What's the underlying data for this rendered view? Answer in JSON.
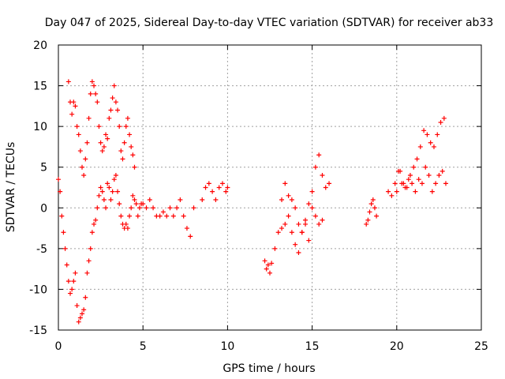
{
  "chart_data": {
    "type": "scatter",
    "title": "Day 047 of 2025, Sidereal Day-to-day VTEC variation (SDTVAR) for receiver ab33",
    "xlabel": "GPS time / hours",
    "ylabel": "SDTVAR / TECUs",
    "xlim": [
      0,
      25
    ],
    "ylim": [
      -15,
      20
    ],
    "xticks": [
      0,
      5,
      10,
      15,
      20,
      25
    ],
    "yticks": [
      -15,
      -10,
      -5,
      0,
      5,
      10,
      15,
      20
    ],
    "grid": true,
    "marker": "+",
    "color": "#ff0000",
    "series": [
      {
        "name": "SDTVAR",
        "x": [
          0.0,
          0.1,
          0.2,
          0.3,
          0.4,
          0.5,
          0.6,
          0.7,
          0.8,
          0.9,
          1.0,
          1.1,
          1.2,
          1.3,
          1.4,
          1.5,
          1.6,
          1.7,
          1.8,
          1.9,
          2.0,
          2.1,
          2.2,
          2.3,
          2.4,
          2.5,
          2.6,
          2.7,
          2.8,
          2.9,
          3.0,
          3.1,
          3.2,
          3.3,
          3.4,
          3.5,
          3.6,
          3.7,
          3.8,
          3.9,
          4.0,
          4.1,
          4.2,
          4.3,
          4.4,
          4.5,
          4.6,
          4.7,
          4.8,
          4.9,
          5.0,
          5.2,
          5.4,
          5.6,
          5.8,
          6.0,
          6.2,
          6.4,
          6.6,
          6.8,
          7.0,
          7.2,
          7.4,
          7.6,
          7.8,
          8.0,
          8.5,
          8.7,
          8.9,
          9.1,
          9.3,
          9.5,
          9.7,
          9.9,
          10.0,
          0.6,
          0.7,
          0.8,
          0.9,
          1.0,
          1.1,
          1.2,
          1.3,
          1.4,
          1.5,
          1.6,
          1.7,
          1.8,
          1.9,
          2.0,
          2.1,
          2.2,
          2.3,
          2.4,
          2.5,
          2.6,
          2.7,
          2.8,
          2.9,
          3.0,
          3.1,
          3.2,
          3.3,
          3.4,
          3.5,
          3.6,
          3.7,
          3.8,
          3.9,
          4.0,
          4.1,
          4.2,
          4.3,
          4.4,
          4.5,
          12.2,
          12.3,
          12.4,
          12.5,
          12.6,
          12.8,
          13.0,
          13.2,
          13.4,
          13.6,
          13.8,
          14.0,
          14.2,
          14.4,
          14.6,
          14.8,
          15.0,
          15.2,
          15.4,
          15.6,
          15.8,
          16.0,
          13.2,
          13.4,
          13.6,
          13.8,
          14.0,
          14.2,
          14.4,
          14.6,
          14.8,
          15.0,
          15.2,
          15.4,
          15.6,
          18.2,
          18.3,
          18.4,
          18.5,
          18.6,
          18.7,
          18.8,
          19.5,
          19.7,
          19.9,
          20.1,
          20.3,
          20.5,
          20.7,
          20.9,
          21.1,
          21.3,
          21.5,
          21.7,
          21.9,
          22.1,
          22.3,
          22.5,
          22.7,
          22.9,
          20.0,
          20.2,
          20.4,
          20.6,
          20.8,
          21.0,
          21.2,
          21.4,
          21.6,
          21.8,
          22.0,
          22.2,
          22.4,
          22.6,
          22.8
        ],
        "y": [
          3.5,
          2.0,
          -1.0,
          -3.0,
          -5.0,
          -7.0,
          -9.0,
          -10.5,
          -10.0,
          -9.0,
          -8.0,
          -12.0,
          -14.0,
          -13.5,
          -13.0,
          -12.5,
          -11.0,
          -8.0,
          -6.5,
          -5.0,
          -3.0,
          -2.0,
          -1.5,
          0.0,
          1.5,
          2.5,
          2.0,
          1.0,
          0.0,
          3.0,
          2.5,
          1.0,
          2.0,
          3.5,
          4.0,
          2.0,
          0.5,
          -1.0,
          -2.0,
          -2.5,
          -2.0,
          -2.5,
          -1.0,
          0.0,
          1.5,
          1.0,
          0.5,
          -1.0,
          0.0,
          0.5,
          0.5,
          0.0,
          1.0,
          0.0,
          -1.0,
          -1.0,
          -0.5,
          -1.0,
          0.0,
          -1.0,
          0.0,
          1.0,
          -1.0,
          -2.5,
          -3.5,
          0.0,
          1.0,
          2.5,
          3.0,
          2.0,
          1.0,
          2.5,
          3.0,
          2.0,
          2.5,
          15.5,
          13.0,
          11.5,
          13.0,
          12.5,
          10.0,
          9.0,
          7.0,
          5.0,
          4.0,
          6.0,
          8.0,
          11.0,
          14.0,
          15.5,
          15.0,
          14.0,
          13.0,
          10.0,
          8.0,
          7.0,
          7.5,
          9.0,
          8.5,
          11.0,
          12.0,
          13.5,
          15.0,
          13.0,
          12.0,
          10.0,
          7.0,
          6.0,
          8.0,
          10.0,
          11.0,
          9.0,
          7.5,
          6.5,
          5.0,
          -6.5,
          -7.5,
          -7.0,
          -8.0,
          -6.8,
          -5.0,
          -3.0,
          -2.5,
          -2.0,
          -1.0,
          1.0,
          0.0,
          -2.0,
          -3.0,
          -1.5,
          0.5,
          2.0,
          5.0,
          6.5,
          4.0,
          2.5,
          3.0,
          1.0,
          3.0,
          1.5,
          -3.0,
          -4.5,
          -5.5,
          -3.0,
          -2.0,
          -4.0,
          0.0,
          -1.0,
          -2.0,
          -1.5,
          -2.0,
          -1.5,
          -0.5,
          0.5,
          1.0,
          0.0,
          -1.0,
          2.0,
          1.5,
          3.0,
          4.5,
          3.0,
          2.5,
          3.5,
          3.0,
          2.0,
          3.5,
          3.0,
          5.0,
          4.0,
          2.0,
          3.0,
          4.0,
          4.5,
          3.0,
          2.0,
          4.5,
          3.0,
          2.5,
          4.0,
          5.0,
          6.0,
          7.5,
          9.5,
          9.0,
          8.0,
          7.5,
          9.0,
          10.5,
          11.0
        ]
      }
    ]
  }
}
